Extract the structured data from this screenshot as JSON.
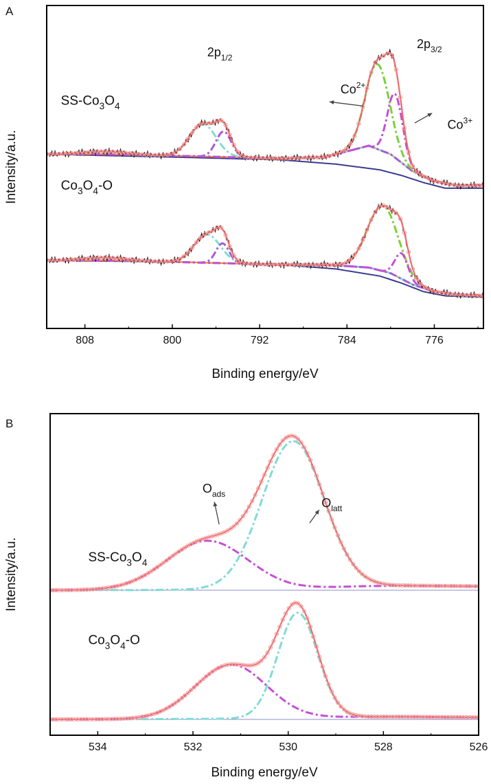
{
  "colors": {
    "frame": "#000000",
    "raw": "#222222",
    "envelope": "#f06b6b",
    "envelope_marker": "#f3a0a0",
    "background": "#ff7f2a",
    "baseline": "#3b3b8f",
    "cyan": "#7fdcd3",
    "green": "#7ad13a",
    "purple": "#a55bd9",
    "magenta": "#c54fd4",
    "thin_baseline": "#8c8cc8",
    "arrow": "#444444"
  },
  "chart_data": [
    {
      "panel_label": "A",
      "type": "line",
      "xlabel": "Binding energy/eV",
      "ylabel": "Intensity/a.u.",
      "xlim": [
        811.5,
        771.5
      ],
      "xreversed": true,
      "xticks": [
        808,
        800,
        792,
        784,
        776
      ],
      "ylim": [
        -0.08,
        2.2
      ],
      "grid": false,
      "annotations": [
        {
          "text": "2p",
          "sub": "1/2",
          "x": 796.8,
          "y": 1.84
        },
        {
          "text": "2p",
          "sub": "3/2",
          "x": 777.6,
          "y": 1.9
        },
        {
          "text": "Co",
          "sup": "2+",
          "x": 784.6,
          "y": 1.58
        },
        {
          "text": "Co",
          "sup": "3+",
          "x": 774.8,
          "y": 1.33
        }
      ],
      "arrows": [
        {
          "from": [
            782.5,
            1.49
          ],
          "to": [
            785.6,
            1.52
          ]
        },
        {
          "from": [
            777.8,
            1.37
          ],
          "to": [
            776.2,
            1.44
          ]
        }
      ],
      "series": [
        {
          "label": "SS-Co3O4",
          "label_text": {
            "main": "SS-Co",
            "sub1": "3",
            "mid": "O",
            "sub2": "4"
          },
          "label_pos": {
            "x": 810.2,
            "y": 1.5
          },
          "offset": 1.15,
          "background_points": [
            [
              811.5,
              0.0
            ],
            [
              806,
              0.0
            ],
            [
              800,
              -0.01
            ],
            [
              795,
              -0.02
            ],
            [
              790,
              -0.03
            ],
            [
              786,
              -0.02
            ],
            [
              784,
              0.02
            ],
            [
              782,
              0.06
            ],
            [
              780,
              0.0
            ],
            [
              778,
              -0.12
            ],
            [
              776,
              -0.19
            ],
            [
              774,
              -0.22
            ],
            [
              771.5,
              -0.22
            ]
          ],
          "baseline_points": [
            [
              811.5,
              0.0
            ],
            [
              800,
              -0.02
            ],
            [
              795,
              -0.03
            ],
            [
              790,
              -0.04
            ],
            [
              785,
              -0.07
            ],
            [
              781,
              -0.11
            ],
            [
              779,
              -0.15
            ],
            [
              777,
              -0.2
            ],
            [
              775,
              -0.24
            ],
            [
              771.5,
              -0.24
            ]
          ],
          "components": [
            {
              "name": "cyan",
              "peaks": [
                [
                  797.2,
                  0.23,
                  1.2
                ],
                [
                  806.2,
                  0.02,
                  2.0
                ]
              ]
            },
            {
              "name": "purple",
              "peaks": [
                [
                  795.3,
                  0.18,
                  0.7
                ]
              ]
            },
            {
              "name": "green",
              "peaks": [
                [
                  781.2,
                  0.6,
                  1.1
                ]
              ]
            },
            {
              "name": "magenta",
              "peaks": [
                [
                  779.6,
                  0.45,
                  0.7
                ]
              ]
            }
          ]
        },
        {
          "label": "Co3O4-O",
          "label_text": {
            "main": "Co",
            "sub1": "3",
            "mid": "O",
            "sub2": "4",
            "tail": "-O"
          },
          "label_pos": {
            "x": 810.2,
            "y": 0.9
          },
          "offset": 0.4,
          "background_points": [
            [
              811.5,
              0.0
            ],
            [
              806,
              0.0
            ],
            [
              800,
              -0.01
            ],
            [
              795,
              -0.02
            ],
            [
              790,
              -0.03
            ],
            [
              786,
              -0.03
            ],
            [
              782,
              -0.05
            ],
            [
              780,
              -0.09
            ],
            [
              778,
              -0.17
            ],
            [
              776,
              -0.22
            ],
            [
              774,
              -0.24
            ],
            [
              771.5,
              -0.25
            ]
          ],
          "baseline_points": [
            [
              811.5,
              0.0
            ],
            [
              800,
              -0.01
            ],
            [
              795,
              -0.02
            ],
            [
              790,
              -0.03
            ],
            [
              785,
              -0.06
            ],
            [
              781,
              -0.11
            ],
            [
              779,
              -0.16
            ],
            [
              777,
              -0.22
            ],
            [
              775,
              -0.25
            ],
            [
              771.5,
              -0.26
            ]
          ],
          "components": [
            {
              "name": "cyan",
              "peaks": [
                [
                  796.8,
                  0.2,
                  1.2
                ],
                [
                  806.2,
                  0.02,
                  2.0
                ]
              ]
            },
            {
              "name": "purple",
              "peaks": [
                [
                  795.4,
                  0.14,
                  0.6
                ]
              ]
            },
            {
              "name": "green",
              "peaks": [
                [
                  780.7,
                  0.46,
                  1.4
                ]
              ]
            },
            {
              "name": "magenta",
              "peaks": [
                [
                  779.0,
                  0.18,
                  0.6
                ]
              ]
            }
          ]
        }
      ]
    },
    {
      "panel_label": "B",
      "type": "line",
      "xlabel": "Binding energy/eV",
      "ylabel": "Intensity/a.u.",
      "xlim": [
        535,
        526
      ],
      "xreversed": true,
      "xticks": [
        534,
        532,
        530,
        528,
        526
      ],
      "ylim": [
        -0.12,
        2.32
      ],
      "grid": false,
      "annotations": [
        {
          "text": "O",
          "sub": "ads",
          "x": 531.8,
          "y": 1.72
        },
        {
          "text": "O",
          "sub": "latt",
          "x": 529.3,
          "y": 1.61
        }
      ],
      "arrows": [
        {
          "from": [
            531.45,
            1.48
          ],
          "to": [
            531.55,
            1.65
          ]
        },
        {
          "from": [
            529.55,
            1.49
          ],
          "to": [
            529.35,
            1.59
          ]
        }
      ],
      "series": [
        {
          "label": "SS-Co3O4",
          "label_text": {
            "main": "SS-Co",
            "sub1": "3",
            "mid": "O",
            "sub2": "4"
          },
          "label_pos": {
            "x": 534.2,
            "y": 1.2
          },
          "offset": 0.98,
          "tail": [
            [
              535,
              0.0
            ],
            [
              533,
              0.002
            ],
            [
              530,
              0.01
            ],
            [
              528.5,
              0.03
            ],
            [
              527.5,
              0.035
            ],
            [
              526,
              0.03
            ]
          ],
          "components": [
            {
              "name": "cyan",
              "peaks": [
                [
                  529.9,
                  1.12,
                  0.65
                ]
              ]
            },
            {
              "name": "magenta",
              "peaks": [
                [
                  531.7,
                  0.37,
                  0.85
                ]
              ]
            }
          ]
        },
        {
          "label": "Co3O4-O",
          "label_text": {
            "main": "Co",
            "sub1": "3",
            "mid": "O",
            "sub2": "4",
            "tail": "-O"
          },
          "label_pos": {
            "x": 534.2,
            "y": 0.57
          },
          "offset": 0.0,
          "tail": [
            [
              535,
              0.0
            ],
            [
              533,
              0.002
            ],
            [
              530,
              0.008
            ],
            [
              528.5,
              0.02
            ],
            [
              527.5,
              0.02
            ],
            [
              526,
              0.015
            ]
          ],
          "components": [
            {
              "name": "cyan",
              "peaks": [
                [
                  529.8,
                  0.8,
                  0.42
                ]
              ]
            },
            {
              "name": "magenta",
              "peaks": [
                [
                  531.2,
                  0.41,
                  0.75
                ]
              ]
            }
          ]
        }
      ]
    }
  ]
}
